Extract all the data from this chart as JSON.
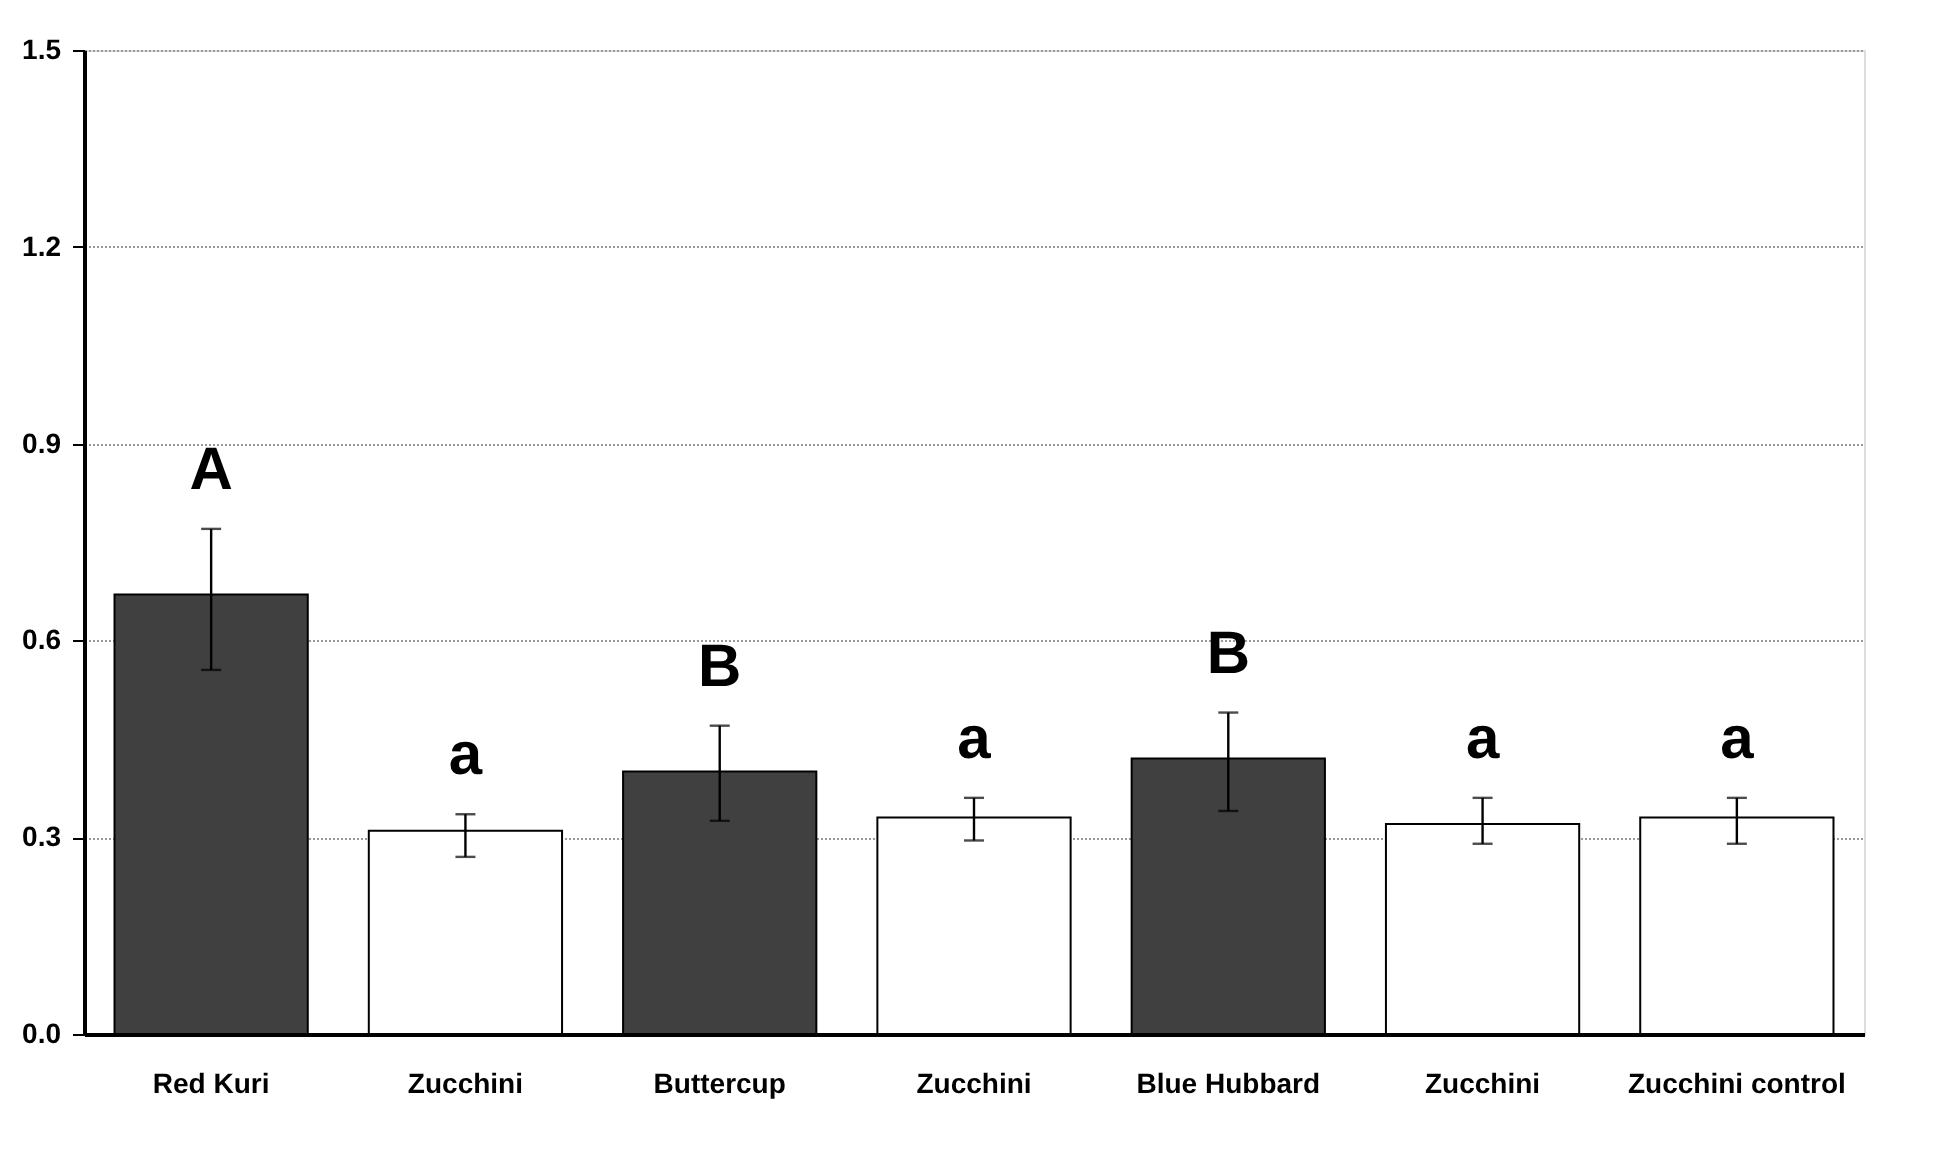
{
  "chart_data": {
    "type": "bar",
    "categories": [
      "Red Kuri",
      "Zucchini",
      "Buttercup",
      "Zucchini",
      "Blue Hubbard",
      "Zucchini",
      "Zucchini control"
    ],
    "values": [
      0.67,
      0.31,
      0.4,
      0.33,
      0.42,
      0.32,
      0.33
    ],
    "colors": [
      "#404040",
      "#ffffff",
      "#404040",
      "#ffffff",
      "#404040",
      "#ffffff",
      "#ffffff"
    ],
    "errors": [
      [
        0.555,
        0.77
      ],
      [
        0.27,
        0.335
      ],
      [
        0.325,
        0.47
      ],
      [
        0.295,
        0.36
      ],
      [
        0.34,
        0.49
      ],
      [
        0.29,
        0.36
      ],
      [
        0.29,
        0.36
      ]
    ],
    "annotations": [
      "A",
      "a",
      "B",
      "a",
      "B",
      "a",
      "a"
    ],
    "ylim": [
      0,
      1.5
    ],
    "yticks": [
      {
        "value": 0,
        "label": "0.0"
      },
      0.3,
      0.6,
      0.9,
      1.2,
      1.5
    ],
    "grid": "y"
  }
}
